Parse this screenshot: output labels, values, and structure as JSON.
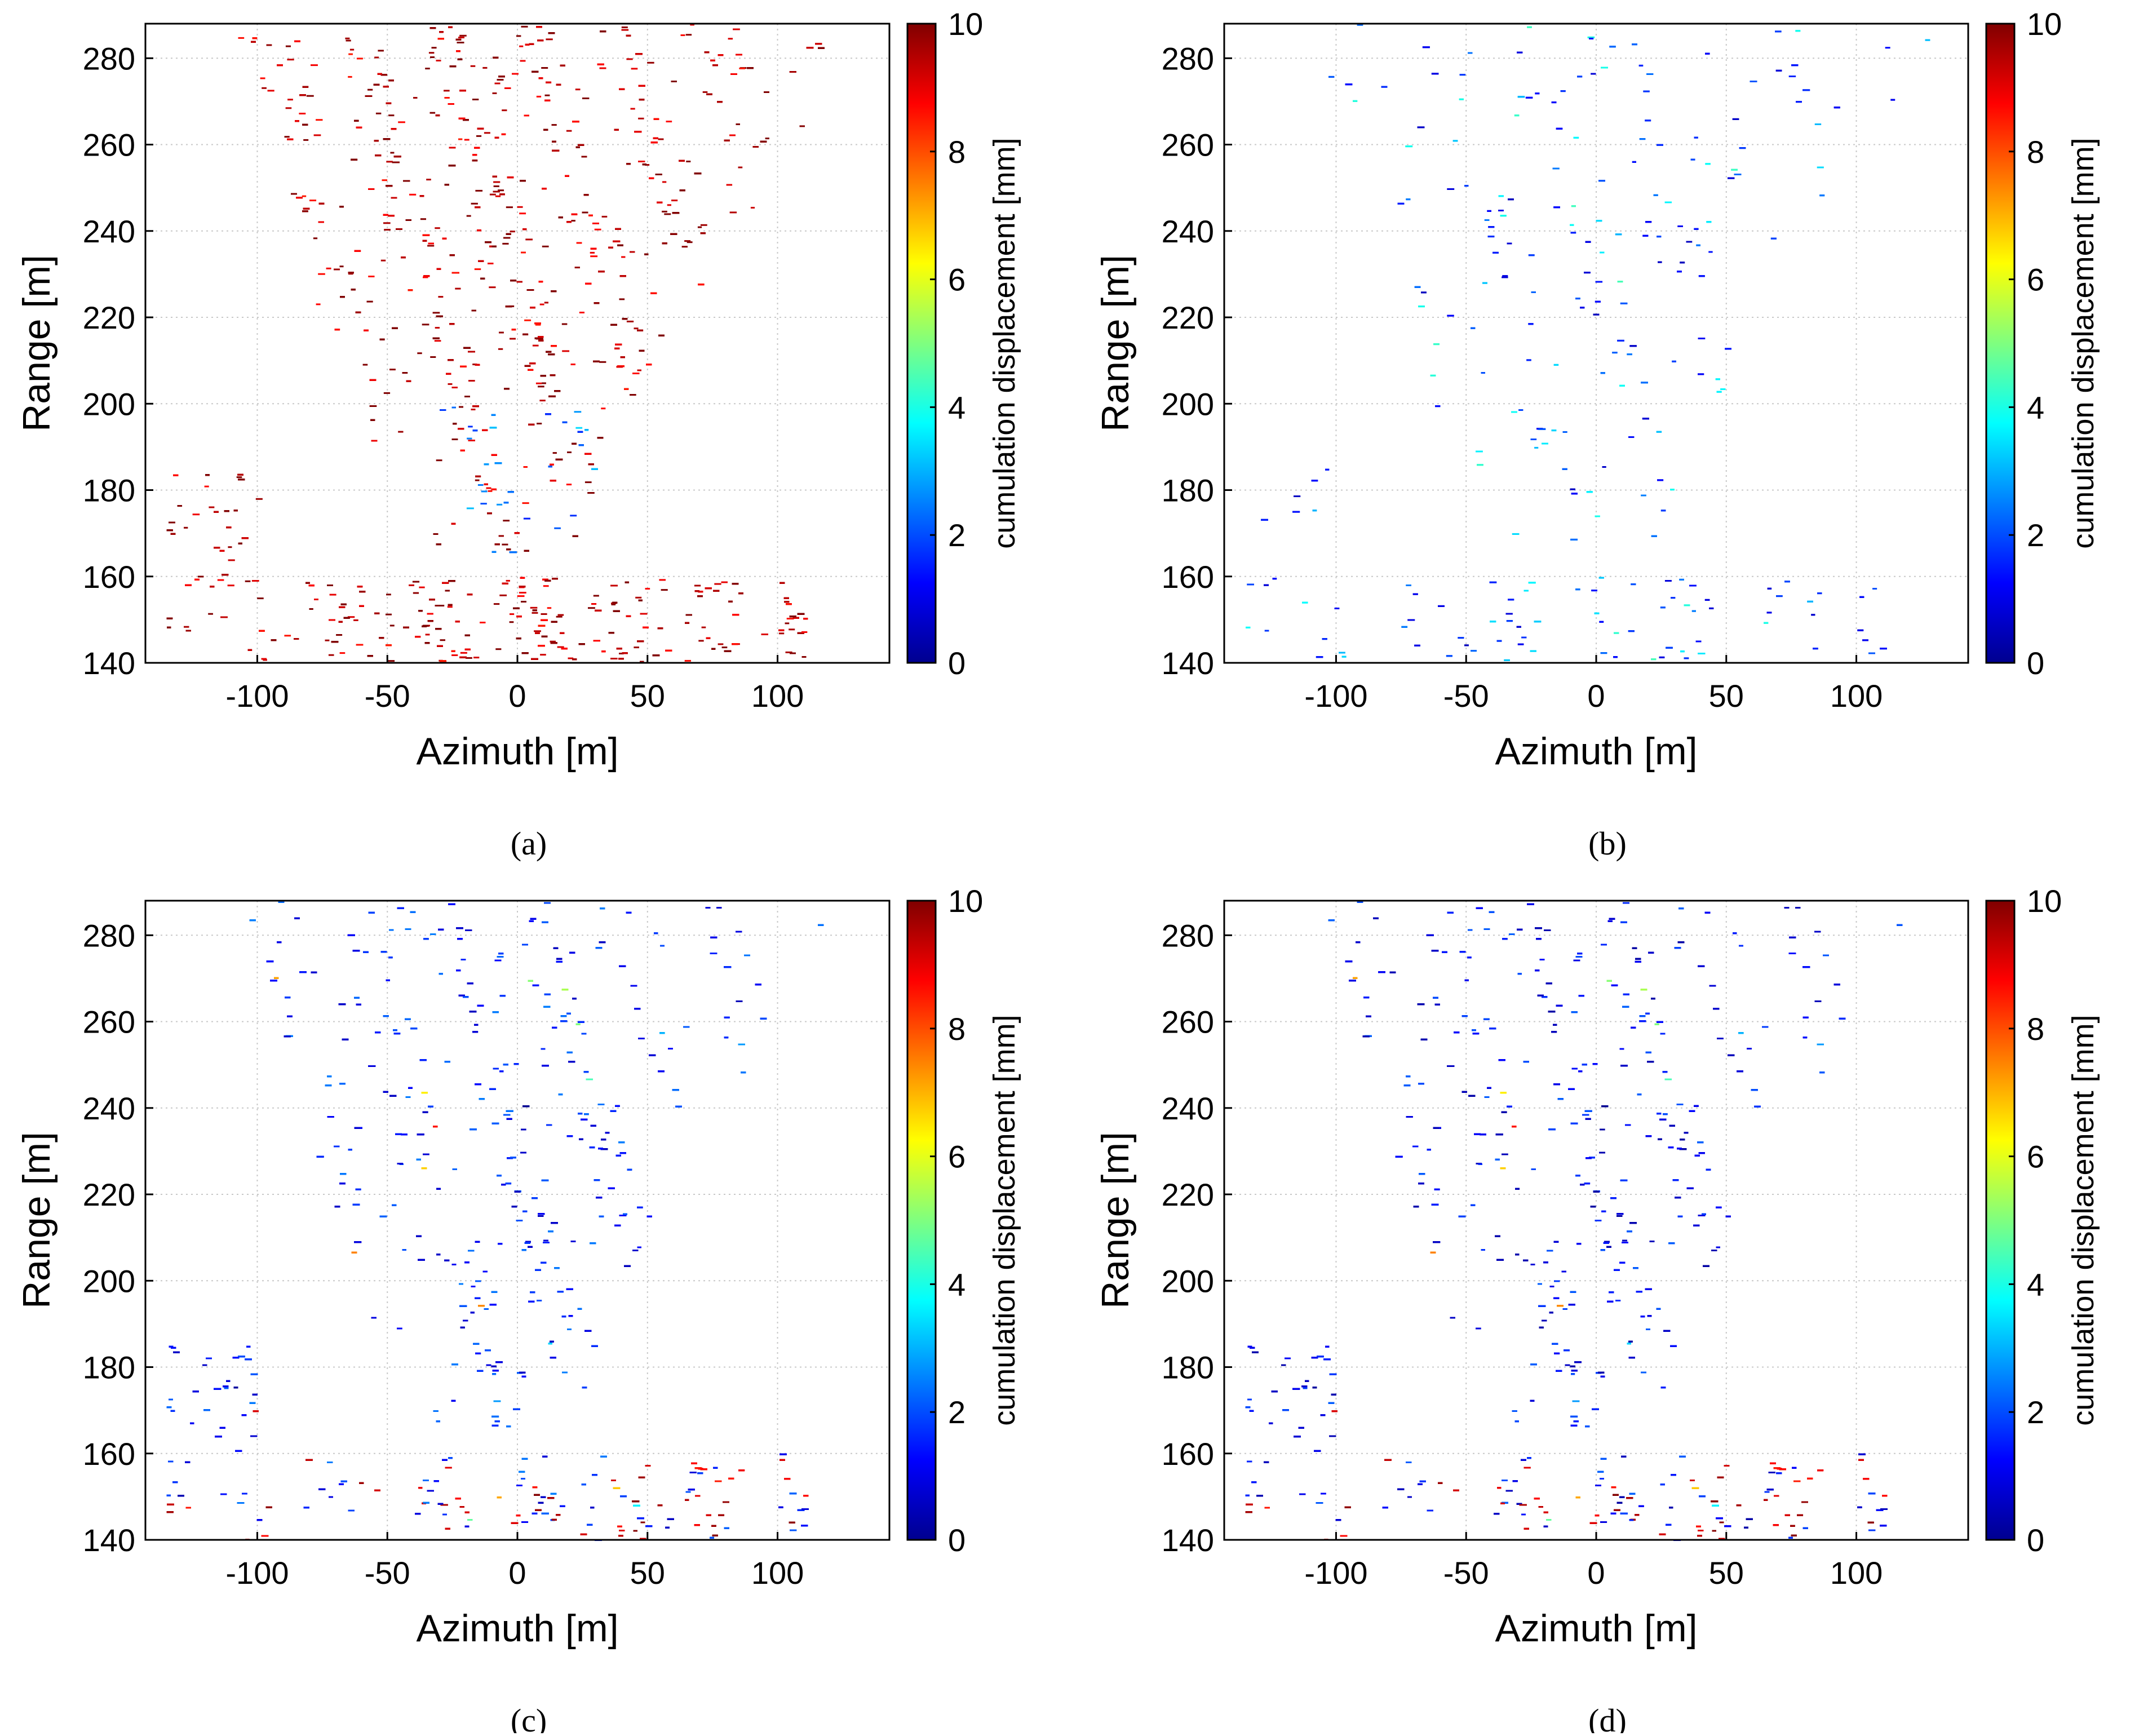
{
  "figure": {
    "colors": {
      "background": "#ffffff",
      "axes": "#000000",
      "grid": "#c8c8c8",
      "colormap": [
        "#00008f",
        "#0000ff",
        "#007fff",
        "#00ffff",
        "#7fff7f",
        "#ffff00",
        "#ff7f00",
        "#ff0000",
        "#800000"
      ]
    }
  },
  "chart_data": [
    {
      "id": "a",
      "type": "heatmap",
      "caption": "(a)",
      "xlabel": "Azimuth [m]",
      "ylabel": "Range [m]",
      "xlim": [
        -143,
        143
      ],
      "ylim": [
        140,
        288
      ],
      "xticks": [
        -100,
        -50,
        0,
        50,
        100
      ],
      "xtick_labels": [
        "-100",
        "-50",
        "0",
        "50",
        "100"
      ],
      "yticks": [
        140,
        160,
        180,
        200,
        220,
        240,
        260,
        280
      ],
      "ytick_labels": [
        "140",
        "160",
        "180",
        "200",
        "220",
        "240",
        "260",
        "280"
      ],
      "grid": true,
      "colorbar": {
        "label": "cumulation displacement [mm]",
        "range": [
          0,
          10
        ],
        "ticks": [
          0,
          2,
          4,
          6,
          8,
          10
        ],
        "tick_labels": [
          "0",
          "2",
          "4",
          "6",
          "8",
          "10"
        ]
      },
      "dominant_value_mm": 9.5,
      "coverage": "dense",
      "description_of_values": "mostly ~10 mm (saturated dark red), blue patches near the central bowl"
    },
    {
      "id": "b",
      "type": "heatmap",
      "caption": "(b)",
      "xlabel": "Azimuth [m]",
      "ylabel": "Range [m]",
      "xlim": [
        -143,
        143
      ],
      "ylim": [
        140,
        288
      ],
      "xticks": [
        -100,
        -50,
        0,
        50,
        100
      ],
      "xtick_labels": [
        "-100",
        "-50",
        "0",
        "50",
        "100"
      ],
      "yticks": [
        140,
        160,
        180,
        200,
        220,
        240,
        260,
        280
      ],
      "ytick_labels": [
        "140",
        "160",
        "180",
        "200",
        "220",
        "240",
        "260",
        "280"
      ],
      "grid": true,
      "colorbar": {
        "label": "cumulation displacement [mm]",
        "range": [
          0,
          10
        ],
        "ticks": [
          0,
          2,
          4,
          6,
          8,
          10
        ],
        "tick_labels": [
          "0",
          "2",
          "4",
          "6",
          "8",
          "10"
        ]
      },
      "dominant_value_mm": 1.5,
      "coverage": "sparse",
      "description_of_values": "sparse points, mostly 0–4 mm (blue/cyan)"
    },
    {
      "id": "c",
      "type": "heatmap",
      "caption": "(c)",
      "xlabel": "Azimuth [m]",
      "ylabel": "Range [m]",
      "xlim": [
        -143,
        143
      ],
      "ylim": [
        140,
        288
      ],
      "xticks": [
        -100,
        -50,
        0,
        50,
        100
      ],
      "xtick_labels": [
        "-100",
        "-50",
        "0",
        "50",
        "100"
      ],
      "yticks": [
        140,
        160,
        180,
        200,
        220,
        240,
        260,
        280
      ],
      "ytick_labels": [
        "140",
        "160",
        "180",
        "200",
        "220",
        "240",
        "260",
        "280"
      ],
      "grid": true,
      "colorbar": {
        "label": "cumulation displacement [mm]",
        "range": [
          0,
          10
        ],
        "ticks": [
          0,
          2,
          4,
          6,
          8,
          10
        ],
        "tick_labels": [
          "0",
          "2",
          "4",
          "6",
          "8",
          "10"
        ]
      },
      "dominant_value_mm": 1.5,
      "coverage": "dense",
      "description_of_values": "mostly blue (~1–2 mm) with red patches (~10 mm) at low range"
    },
    {
      "id": "d",
      "type": "heatmap",
      "caption": "(d)",
      "xlabel": "Azimuth [m]",
      "ylabel": "Range [m]",
      "xlim": [
        -143,
        143
      ],
      "ylim": [
        140,
        288
      ],
      "xticks": [
        -100,
        -50,
        0,
        50,
        100
      ],
      "xtick_labels": [
        "-100",
        "-50",
        "0",
        "50",
        "100"
      ],
      "yticks": [
        140,
        160,
        180,
        200,
        220,
        240,
        260,
        280
      ],
      "ytick_labels": [
        "140",
        "160",
        "180",
        "200",
        "220",
        "240",
        "260",
        "280"
      ],
      "grid": true,
      "colorbar": {
        "label": "cumulation displacement [mm]",
        "range": [
          0,
          10
        ],
        "ticks": [
          0,
          2,
          4,
          6,
          8,
          10
        ],
        "tick_labels": [
          "0",
          "2",
          "4",
          "6",
          "8",
          "10"
        ]
      },
      "dominant_value_mm": 1.2,
      "coverage": "dense",
      "description_of_values": "mostly dark blue (~0–2 mm) with red patches (~10 mm) at low range"
    }
  ]
}
